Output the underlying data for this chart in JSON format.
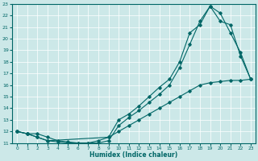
{
  "xlabel": "Humidex (Indice chaleur)",
  "background_color": "#cce8e8",
  "line_color": "#006666",
  "xlim": [
    -0.5,
    23.5
  ],
  "ylim": [
    11,
    23
  ],
  "yticks": [
    11,
    12,
    13,
    14,
    15,
    16,
    17,
    18,
    19,
    20,
    21,
    22,
    23
  ],
  "xticks": [
    0,
    1,
    2,
    3,
    4,
    5,
    6,
    7,
    8,
    9,
    10,
    11,
    12,
    13,
    14,
    15,
    16,
    17,
    18,
    19,
    20,
    21,
    22,
    23
  ],
  "line1_x": [
    0,
    1,
    2,
    3,
    4,
    5,
    6,
    7,
    8,
    9,
    10,
    11,
    12,
    13,
    14,
    15,
    16,
    17,
    18,
    19,
    20,
    21,
    22,
    23
  ],
  "line1_y": [
    12.0,
    11.8,
    11.8,
    11.5,
    11.2,
    11.1,
    11.0,
    11.0,
    11.0,
    11.2,
    12.5,
    13.2,
    13.8,
    14.5,
    15.2,
    16.0,
    17.5,
    19.5,
    21.5,
    22.8,
    21.5,
    21.2,
    18.5,
    16.5
  ],
  "line2_x": [
    0,
    1,
    2,
    3,
    4,
    5,
    6,
    7,
    8,
    9,
    10,
    11,
    12,
    13,
    14,
    15,
    16,
    17,
    18,
    19,
    20,
    21,
    22,
    23
  ],
  "line2_y": [
    12.0,
    11.8,
    11.5,
    11.2,
    11.1,
    11.0,
    11.0,
    11.0,
    11.2,
    11.5,
    13.0,
    13.5,
    14.2,
    15.0,
    15.8,
    16.5,
    18.0,
    20.5,
    21.2,
    22.8,
    22.2,
    20.5,
    18.8,
    16.5
  ],
  "line3_x": [
    0,
    1,
    2,
    3,
    9,
    10,
    11,
    12,
    13,
    14,
    15,
    16,
    17,
    18,
    19,
    20,
    21,
    22,
    23
  ],
  "line3_y": [
    12.0,
    11.8,
    11.5,
    11.2,
    11.5,
    12.0,
    12.5,
    13.0,
    13.5,
    14.0,
    14.5,
    15.0,
    15.5,
    16.0,
    16.2,
    16.3,
    16.4,
    16.4,
    16.5
  ]
}
